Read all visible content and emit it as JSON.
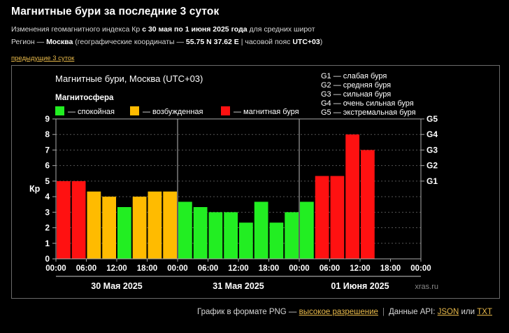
{
  "page": {
    "title": "Магнитные бури за последние 3 суток",
    "subtitle_line1": {
      "pre": "Изменения геомагнитного индекса Кр ",
      "bold": "с 30 мая по 1 июня 2025 года",
      "post": " для средних широт"
    },
    "subtitle_line2": {
      "pre": "Регион — ",
      "region": "Москва",
      "mid": " (географические координаты — ",
      "coords": "55.75 N 37.62 E",
      "mid2": " | часовой пояс ",
      "tz": "UTC+03",
      "post": ")"
    },
    "prev_link": "предыдущие 3 суток"
  },
  "footer": {
    "png_text": "График в формате PNG — ",
    "hires_link": "высокое разрешение",
    "api_text": "Данные API: ",
    "json_link": "JSON",
    "or_text": " или ",
    "txt_link": "TXT"
  },
  "chart_data": {
    "type": "bar",
    "title": "Магнитные бури, Москва (UTC+03)",
    "ylabel": "Кр",
    "ylim": [
      0,
      9
    ],
    "yticks": [
      "0",
      "1",
      "2",
      "3",
      "4",
      "5",
      "6",
      "7",
      "8",
      "9"
    ],
    "right_ticks": [
      {
        "value": 5,
        "label": "G1"
      },
      {
        "value": 6,
        "label": "G2"
      },
      {
        "value": 7,
        "label": "G3"
      },
      {
        "value": 8,
        "label": "G4"
      },
      {
        "value": 9,
        "label": "G5"
      }
    ],
    "legend_title": "Магнитосфера",
    "legend": [
      {
        "label": "— спокойная",
        "color": "#22ee22"
      },
      {
        "label": "— возбужденная",
        "color": "#ffbb00"
      },
      {
        "label": "— магнитная буря",
        "color": "#ff1111"
      }
    ],
    "storm_scale": [
      "G1 — слабая буря",
      "G2 — средняя буря",
      "G3 — сильная буря",
      "G4 — очень сильная буря",
      "G5 — экстремальная буря"
    ],
    "x_ticks": [
      "00:00",
      "06:00",
      "12:00",
      "18:00",
      "00:00",
      "06:00",
      "12:00",
      "18:00",
      "00:00",
      "06:00",
      "12:00",
      "18:00",
      "00:00"
    ],
    "days": [
      "30 Мая 2025",
      "31 Мая 2025",
      "01 Июня 2025"
    ],
    "slots_per_day": 8,
    "values": [
      5.0,
      5.0,
      4.33,
      4.0,
      3.33,
      4.0,
      4.33,
      4.33,
      3.67,
      3.33,
      3.0,
      3.0,
      2.33,
      3.67,
      2.33,
      3.0,
      3.67,
      5.33,
      5.33,
      8.0,
      7.0
    ],
    "levels": [
      "storm",
      "storm",
      "excited",
      "excited",
      "calm",
      "excited",
      "excited",
      "excited",
      "calm",
      "calm",
      "calm",
      "calm",
      "calm",
      "calm",
      "calm",
      "calm",
      "calm",
      "storm",
      "storm",
      "storm",
      "storm"
    ],
    "level_colors": {
      "calm": "#22ee22",
      "excited": "#ffbb00",
      "storm": "#ff1111"
    },
    "watermark": "xras.ru",
    "grid": true
  }
}
